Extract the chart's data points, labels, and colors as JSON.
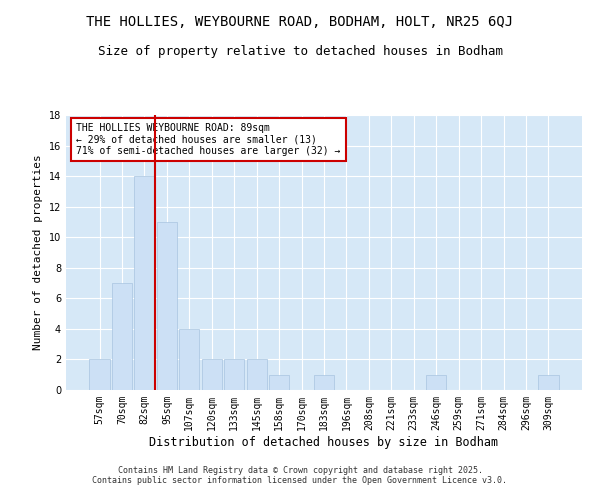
{
  "title": "THE HOLLIES, WEYBOURNE ROAD, BODHAM, HOLT, NR25 6QJ",
  "subtitle": "Size of property relative to detached houses in Bodham",
  "xlabel": "Distribution of detached houses by size in Bodham",
  "ylabel": "Number of detached properties",
  "categories": [
    "57sqm",
    "70sqm",
    "82sqm",
    "95sqm",
    "107sqm",
    "120sqm",
    "133sqm",
    "145sqm",
    "158sqm",
    "170sqm",
    "183sqm",
    "196sqm",
    "208sqm",
    "221sqm",
    "233sqm",
    "246sqm",
    "259sqm",
    "271sqm",
    "284sqm",
    "296sqm",
    "309sqm"
  ],
  "values": [
    2,
    7,
    14,
    11,
    4,
    2,
    2,
    2,
    1,
    0,
    1,
    0,
    0,
    0,
    0,
    1,
    0,
    0,
    0,
    0,
    1
  ],
  "bar_color": "#cce0f5",
  "bar_edge_color": "#a8c4e0",
  "red_line_index": 2,
  "annotation_title": "THE HOLLIES WEYBOURNE ROAD: 89sqm",
  "annotation_line2": "← 29% of detached houses are smaller (13)",
  "annotation_line3": "71% of semi-detached houses are larger (32) →",
  "annotation_box_color": "#ffffff",
  "annotation_box_edge": "#cc0000",
  "ylim": [
    0,
    18
  ],
  "yticks": [
    0,
    2,
    4,
    6,
    8,
    10,
    12,
    14,
    16,
    18
  ],
  "background_color": "#d6e8f7",
  "grid_color": "#ffffff",
  "footer_line1": "Contains HM Land Registry data © Crown copyright and database right 2025.",
  "footer_line2": "Contains public sector information licensed under the Open Government Licence v3.0.",
  "title_fontsize": 10,
  "subtitle_fontsize": 9,
  "fig_bg": "#ffffff"
}
